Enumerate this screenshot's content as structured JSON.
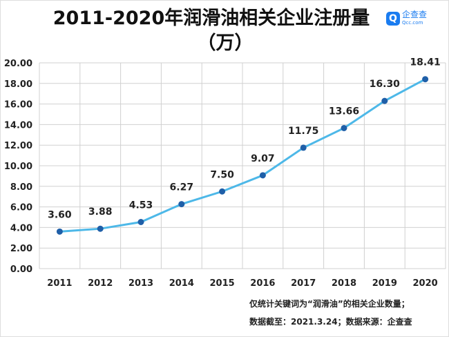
{
  "title_line1": "2011-2020年润滑油相关企业注册量",
  "title_line2": "（万）",
  "logo": {
    "name": "企查查",
    "url_text": "Qcc.com"
  },
  "notes": [
    "仅统计关键词为“润滑油”的相关企业数量；",
    "数据截至：2021.3.24；数据来源：企查查"
  ],
  "colors": {
    "line": "#4db8e8",
    "marker": "#1f5fa8",
    "grid": "#d0d0d0"
  },
  "chart_data": {
    "type": "line",
    "categories": [
      "2011",
      "2012",
      "2013",
      "2014",
      "2015",
      "2016",
      "2017",
      "2018",
      "2019",
      "2020"
    ],
    "values": [
      3.6,
      3.88,
      4.53,
      6.27,
      7.5,
      9.07,
      11.75,
      13.66,
      16.3,
      18.41
    ],
    "data_labels": [
      "3.60",
      "3.88",
      "4.53",
      "6.27",
      "7.50",
      "9.07",
      "11.75",
      "13.66",
      "16.30",
      "18.41"
    ],
    "yticks": [
      "0.00",
      "2.00",
      "4.00",
      "6.00",
      "8.00",
      "10.00",
      "12.00",
      "14.00",
      "16.00",
      "18.00",
      "20.00"
    ],
    "ylim": [
      0,
      20
    ],
    "grid": true,
    "xlabel": "",
    "ylabel": ""
  }
}
